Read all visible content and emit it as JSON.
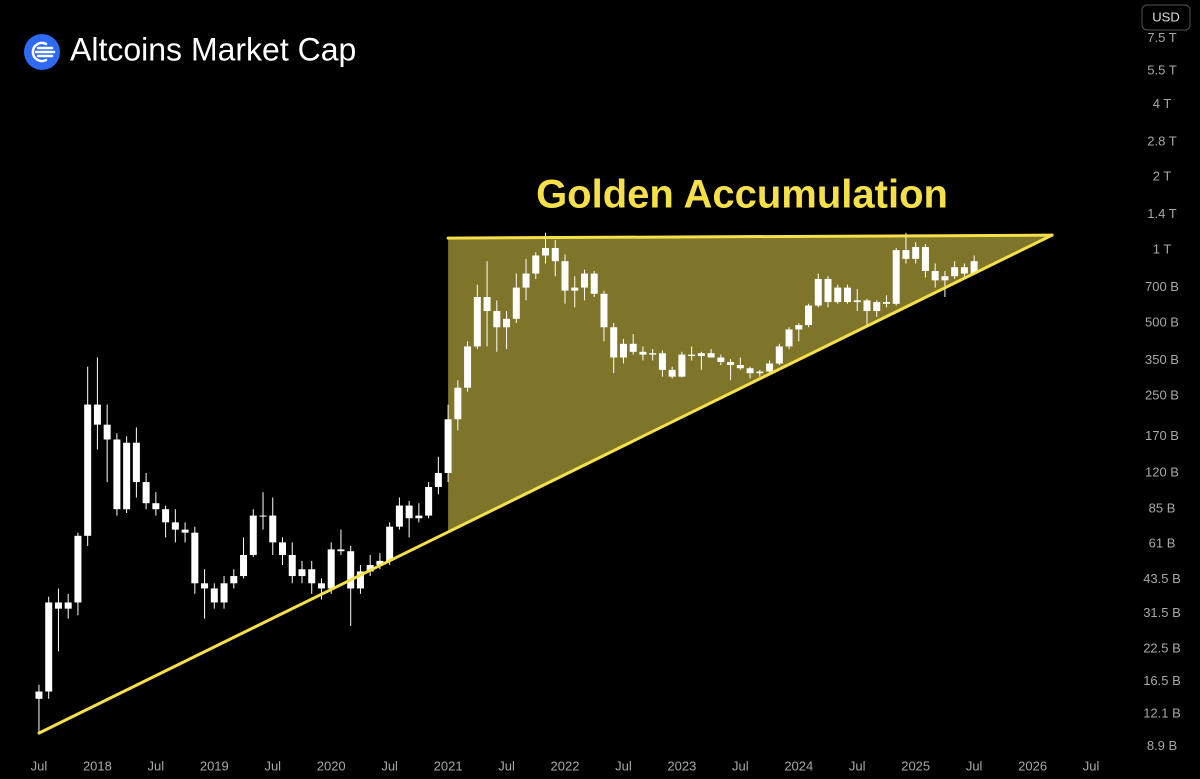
{
  "chart_data": {
    "type": "candlestick",
    "title": "Altcoins Market Cap",
    "currency_button": "USD",
    "annotation": "Golden Accumulation",
    "color": "#ffffff",
    "trendline_color": "#f5e04a",
    "fill_color": "#8c812f",
    "log_scale": true,
    "x": [
      "2017-07",
      "2017-08",
      "2017-09",
      "2017-10",
      "2017-11",
      "2017-12",
      "2018-01",
      "2018-02",
      "2018-03",
      "2018-04",
      "2018-05",
      "2018-06",
      "2018-07",
      "2018-08",
      "2018-09",
      "2018-10",
      "2018-11",
      "2018-12",
      "2019-01",
      "2019-02",
      "2019-03",
      "2019-04",
      "2019-05",
      "2019-06",
      "2019-07",
      "2019-08",
      "2019-09",
      "2019-10",
      "2019-11",
      "2019-12",
      "2020-01",
      "2020-02",
      "2020-03",
      "2020-04",
      "2020-05",
      "2020-06",
      "2020-07",
      "2020-08",
      "2020-09",
      "2020-10",
      "2020-11",
      "2020-12",
      "2021-01",
      "2021-02",
      "2021-03",
      "2021-04",
      "2021-05",
      "2021-06",
      "2021-07",
      "2021-08",
      "2021-09",
      "2021-10",
      "2021-11",
      "2021-12",
      "2022-01",
      "2022-02",
      "2022-03",
      "2022-04",
      "2022-05",
      "2022-06",
      "2022-07",
      "2022-08",
      "2022-09",
      "2022-10",
      "2022-11",
      "2022-12",
      "2023-01",
      "2023-02",
      "2023-03",
      "2023-04",
      "2023-05",
      "2023-06",
      "2023-07",
      "2023-08",
      "2023-09",
      "2023-10",
      "2023-11",
      "2023-12",
      "2024-01",
      "2024-02",
      "2024-03",
      "2024-04",
      "2024-05",
      "2024-06",
      "2024-07",
      "2024-08",
      "2024-09",
      "2024-10",
      "2024-11",
      "2024-12",
      "2025-01",
      "2025-02",
      "2025-03",
      "2025-04",
      "2025-05",
      "2025-06",
      "2025-07"
    ],
    "open": [
      14,
      15,
      35,
      33,
      35,
      66,
      230,
      190,
      165,
      85,
      160,
      110,
      90,
      85,
      75,
      70,
      68,
      42,
      40,
      35,
      42,
      45,
      55,
      80,
      80,
      62,
      55,
      45,
      48,
      42,
      40,
      58,
      57,
      40,
      47,
      50,
      52,
      72,
      88,
      78,
      80,
      105,
      120,
      200,
      270,
      400,
      640,
      560,
      480,
      520,
      700,
      800,
      950,
      1020,
      900,
      680,
      700,
      800,
      660,
      480,
      360,
      410,
      380,
      370,
      375,
      320,
      300,
      370,
      365,
      375,
      360,
      345,
      335,
      325,
      310,
      315,
      340,
      400,
      470,
      490,
      590,
      760,
      610,
      700,
      610,
      620,
      560,
      610,
      600,
      1000,
      920,
      1030,
      820,
      750,
      780,
      850,
      800
    ],
    "high": [
      16,
      37,
      40,
      38,
      68,
      330,
      360,
      230,
      175,
      170,
      185,
      120,
      100,
      88,
      85,
      75,
      72,
      48,
      42,
      45,
      48,
      65,
      85,
      100,
      95,
      65,
      62,
      52,
      52,
      44,
      62,
      70,
      60,
      50,
      55,
      56,
      75,
      95,
      92,
      90,
      110,
      140,
      230,
      290,
      420,
      720,
      900,
      620,
      560,
      800,
      920,
      980,
      1180,
      1100,
      960,
      780,
      830,
      820,
      680,
      500,
      430,
      450,
      400,
      390,
      385,
      330,
      380,
      400,
      380,
      390,
      370,
      355,
      360,
      330,
      320,
      350,
      410,
      480,
      500,
      600,
      800,
      780,
      720,
      720,
      690,
      630,
      620,
      650,
      1020,
      1180,
      1080,
      1060,
      880,
      820,
      900,
      880,
      950
    ],
    "low": [
      10,
      14,
      22,
      30,
      31,
      60,
      150,
      110,
      80,
      82,
      95,
      85,
      80,
      65,
      62,
      62,
      38,
      30,
      33,
      33,
      40,
      44,
      54,
      70,
      55,
      50,
      42,
      42,
      38,
      36,
      38,
      55,
      28,
      38,
      45,
      48,
      50,
      70,
      65,
      75,
      78,
      98,
      110,
      180,
      260,
      390,
      400,
      380,
      390,
      500,
      620,
      760,
      880,
      780,
      600,
      580,
      620,
      640,
      420,
      310,
      340,
      370,
      350,
      350,
      300,
      295,
      298,
      350,
      320,
      360,
      335,
      290,
      320,
      295,
      300,
      305,
      335,
      390,
      420,
      480,
      580,
      580,
      600,
      600,
      560,
      480,
      530,
      580,
      590,
      880,
      880,
      770,
      700,
      640,
      760,
      760,
      790
    ],
    "close": [
      15,
      35,
      33,
      35,
      66,
      230,
      190,
      165,
      85,
      160,
      110,
      90,
      85,
      75,
      70,
      68,
      42,
      40,
      35,
      42,
      45,
      55,
      80,
      80,
      62,
      55,
      45,
      48,
      42,
      40,
      58,
      57,
      40,
      47,
      50,
      52,
      72,
      88,
      78,
      80,
      105,
      120,
      200,
      270,
      400,
      640,
      560,
      480,
      520,
      700,
      800,
      950,
      1020,
      900,
      680,
      700,
      800,
      660,
      480,
      360,
      410,
      380,
      370,
      375,
      320,
      300,
      370,
      365,
      375,
      360,
      345,
      335,
      325,
      310,
      315,
      340,
      400,
      470,
      490,
      590,
      760,
      610,
      700,
      610,
      620,
      560,
      610,
      600,
      1000,
      920,
      1030,
      820,
      750,
      780,
      850,
      800,
      900
    ],
    "trendlines": [
      {
        "x": [
          "2017-07",
          "2026-03"
        ],
        "y": [
          10.1,
          1153
        ]
      },
      {
        "x": [
          "2021-01",
          "2026-03"
        ],
        "y": [
          1121,
          1153
        ]
      }
    ],
    "xlim": [
      "2017-03",
      "2026-11"
    ],
    "xticks": [
      {
        "value": "2017-07",
        "label": "Jul"
      },
      {
        "value": "2018-01",
        "label": "2018"
      },
      {
        "value": "2018-07",
        "label": "Jul"
      },
      {
        "value": "2019-01",
        "label": "2019"
      },
      {
        "value": "2019-07",
        "label": "Jul"
      },
      {
        "value": "2020-01",
        "label": "2020"
      },
      {
        "value": "2020-07",
        "label": "Jul"
      },
      {
        "value": "2021-01",
        "label": "2021"
      },
      {
        "value": "2021-07",
        "label": "Jul"
      },
      {
        "value": "2022-01",
        "label": "2022"
      },
      {
        "value": "2022-07",
        "label": "Jul"
      },
      {
        "value": "2023-01",
        "label": "2023"
      },
      {
        "value": "2023-07",
        "label": "Jul"
      },
      {
        "value": "2024-01",
        "label": "2024"
      },
      {
        "value": "2024-07",
        "label": "Jul"
      },
      {
        "value": "2025-01",
        "label": "2025"
      },
      {
        "value": "2025-07",
        "label": "Jul"
      },
      {
        "value": "2026-01",
        "label": "2026"
      },
      {
        "value": "2026-07",
        "label": "Jul"
      }
    ],
    "ylim": [
      8.6,
      10800
    ],
    "yticks": [
      {
        "value": 7500,
        "label": "7.5 T"
      },
      {
        "value": 5500,
        "label": "5.5 T"
      },
      {
        "value": 4000,
        "label": "4 T"
      },
      {
        "value": 2800,
        "label": "2.8 T"
      },
      {
        "value": 2000,
        "label": "2 T"
      },
      {
        "value": 1400,
        "label": "1.4 T"
      },
      {
        "value": 1000,
        "label": "1 T"
      },
      {
        "value": 700,
        "label": "700 B"
      },
      {
        "value": 500,
        "label": "500 B"
      },
      {
        "value": 350,
        "label": "350 B"
      },
      {
        "value": 250,
        "label": "250 B"
      },
      {
        "value": 170,
        "label": "170 B"
      },
      {
        "value": 120,
        "label": "120 B"
      },
      {
        "value": 85,
        "label": "85 B"
      },
      {
        "value": 61,
        "label": "61 B"
      },
      {
        "value": 43.5,
        "label": "43.5 B"
      },
      {
        "value": 31.5,
        "label": "31.5 B"
      },
      {
        "value": 22.5,
        "label": "22.5 B"
      },
      {
        "value": 16.5,
        "label": "16.5 B"
      },
      {
        "value": 12.1,
        "label": "12.1 B"
      },
      {
        "value": 8.9,
        "label": "8.9 B"
      }
    ]
  }
}
